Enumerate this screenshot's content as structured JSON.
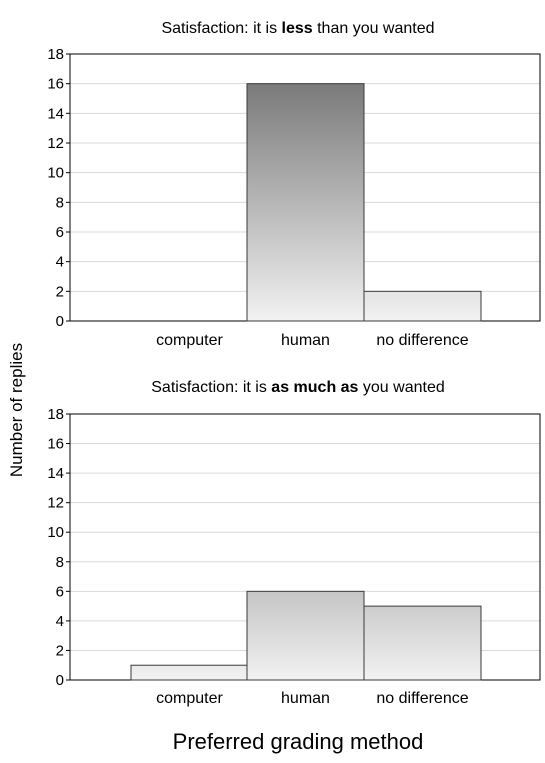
{
  "chart_data": [
    {
      "type": "bar",
      "title_prefix": "Satisfaction: it is ",
      "title_bold": "less",
      "title_suffix": " than you wanted",
      "categories": [
        "computer",
        "human",
        "no difference"
      ],
      "values": [
        0,
        16,
        2
      ],
      "ylim": [
        0,
        18
      ],
      "yticks": [
        0,
        2,
        4,
        6,
        8,
        10,
        12,
        14,
        16,
        18
      ],
      "grid": true
    },
    {
      "type": "bar",
      "title_prefix": "Satisfaction: it is ",
      "title_bold": "as much as",
      "title_suffix": " you wanted",
      "categories": [
        "computer",
        "human",
        "no difference"
      ],
      "values": [
        1,
        6,
        5
      ],
      "ylim": [
        0,
        18
      ],
      "yticks": [
        0,
        2,
        4,
        6,
        8,
        10,
        12,
        14,
        16,
        18
      ],
      "grid": true
    }
  ],
  "ylabel": "Number of replies",
  "xlabel": "Preferred grading method",
  "colors": {
    "bar_dark": "#7a7a7a",
    "bar_light": "#f2f2f2",
    "grid": "#d9d9d9",
    "axis": "#000000"
  }
}
